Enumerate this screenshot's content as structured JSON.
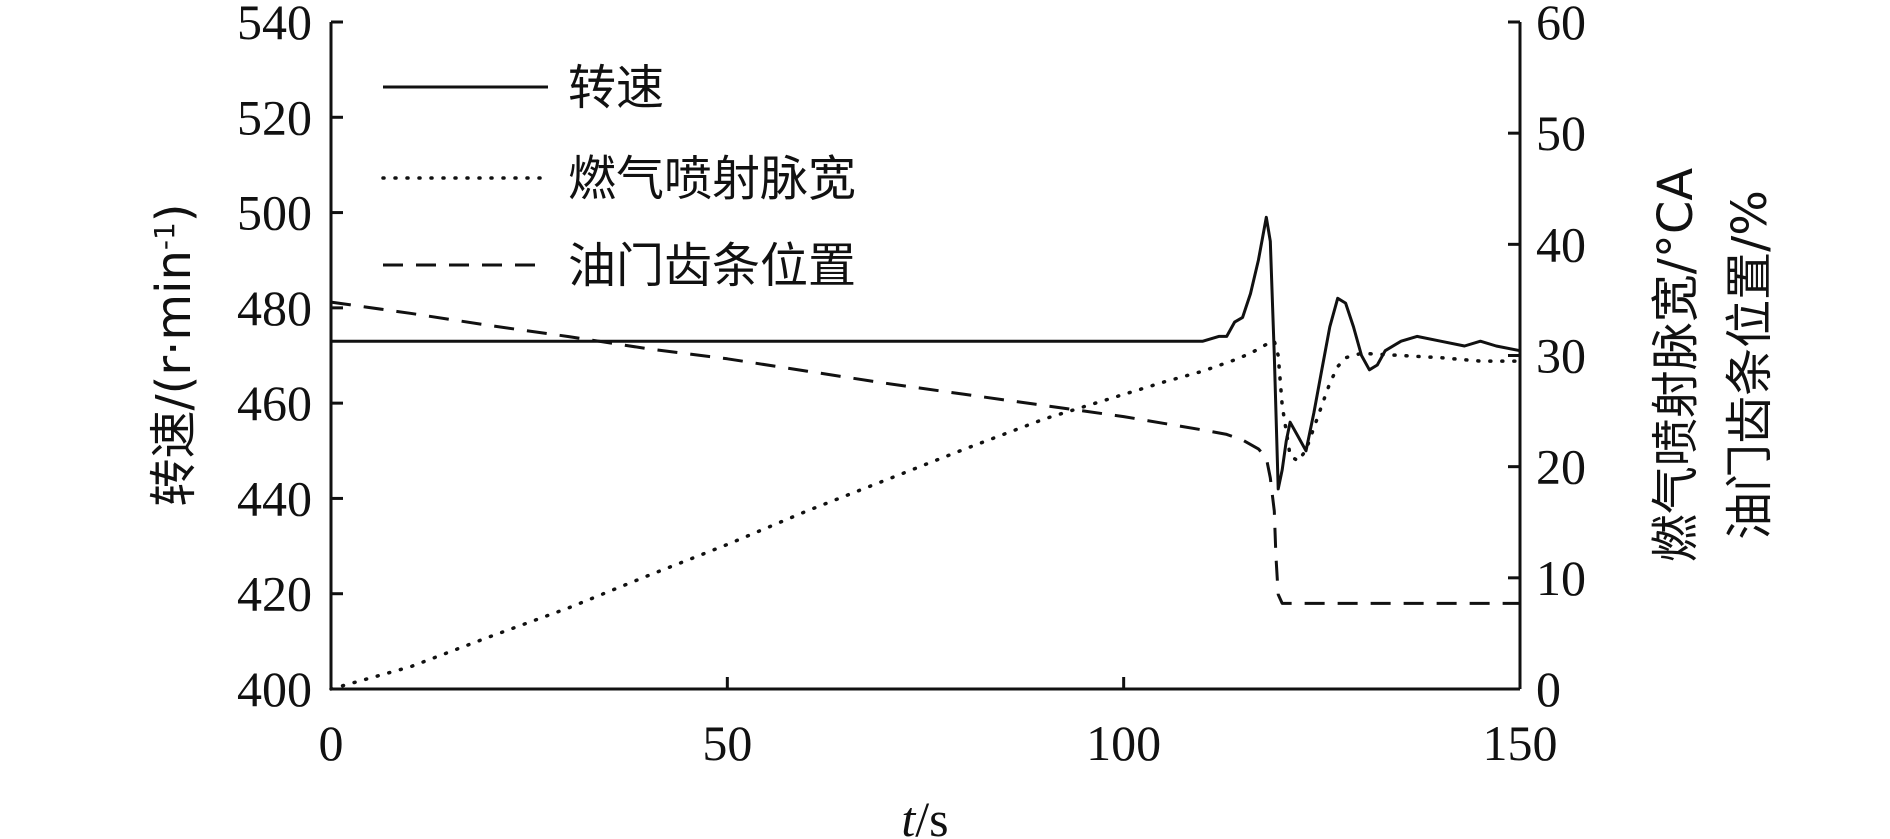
{
  "chart_data": {
    "type": "line",
    "x_label_italic": "t",
    "x_label_unit": "/s",
    "y_left_label": "转速/(r·min",
    "y_left_label_sup": "-1",
    "y_left_label_close": ")",
    "y_right_label_line1": "燃气喷射脉宽/°CA",
    "y_right_label_line2": "油门齿条位置/%",
    "xlim": [
      0,
      150
    ],
    "ylim_left": [
      400,
      540
    ],
    "ylim_right": [
      0,
      60
    ],
    "x_ticks": [
      "0",
      "50",
      "100",
      "150"
    ],
    "y_left_ticks": [
      "400",
      "420",
      "440",
      "460",
      "480",
      "500",
      "520",
      "540"
    ],
    "y_right_ticks": [
      "0",
      "10",
      "20",
      "30",
      "40",
      "50",
      "60"
    ],
    "legend_placement": "top-left",
    "grid": false,
    "series": [
      {
        "name": "转速",
        "axis": "left",
        "style": "solid",
        "color": "#111111",
        "x": [
          0,
          10,
          20,
          30,
          40,
          50,
          60,
          70,
          80,
          90,
          100,
          105,
          110,
          112,
          113,
          114,
          115,
          116,
          117,
          118,
          118.5,
          119,
          119.5,
          120,
          120.5,
          121,
          122,
          123,
          124,
          125,
          126,
          127,
          128,
          129,
          130,
          131,
          132,
          133,
          135,
          137,
          140,
          143,
          145,
          147,
          150
        ],
        "y": [
          473,
          473,
          473,
          473,
          473,
          473,
          473,
          473,
          473,
          473,
          473,
          473,
          473,
          474,
          474,
          477,
          478,
          483,
          490,
          499,
          494,
          470,
          442,
          446,
          452,
          456,
          453,
          450,
          458,
          467,
          476,
          482,
          481,
          476,
          470,
          467,
          468,
          471,
          473,
          474,
          473,
          472,
          473,
          472,
          471
        ]
      },
      {
        "name": "燃气喷射脉宽",
        "axis": "right",
        "style": "dotted",
        "color": "#111111",
        "x": [
          0,
          5,
          10,
          20,
          30,
          40,
          50,
          60,
          70,
          80,
          90,
          100,
          105,
          110,
          112,
          114,
          116,
          118,
          119,
          119.5,
          120,
          121,
          122,
          123,
          124,
          125,
          126,
          127,
          128,
          130,
          135,
          140,
          145,
          150
        ],
        "y": [
          0,
          1,
          2,
          4.7,
          7.3,
          10.2,
          13,
          16,
          18.8,
          21.6,
          24.3,
          26.5,
          27.6,
          28.6,
          29.1,
          29.6,
          30.2,
          31,
          31.3,
          30,
          25.5,
          21,
          20.5,
          21.5,
          23.5,
          25.5,
          27.5,
          29,
          29.8,
          30.2,
          30,
          29.8,
          29.5,
          29.5
        ]
      },
      {
        "name": "油门齿条位置",
        "axis": "right",
        "style": "dashed",
        "color": "#111111",
        "x": [
          0,
          10,
          20,
          30,
          40,
          50,
          60,
          70,
          80,
          90,
          100,
          105,
          110,
          113,
          115,
          117,
          118,
          118.5,
          119,
          119.2,
          119.5,
          120,
          125,
          130,
          140,
          150
        ],
        "y": [
          34.8,
          33.8,
          32.7,
          31.7,
          30.6,
          29.7,
          28.6,
          27.5,
          26.5,
          25.5,
          24.5,
          23.9,
          23.3,
          22.9,
          22.4,
          21.6,
          20.8,
          19,
          16,
          12,
          8.5,
          7.7,
          7.7,
          7.7,
          7.7,
          7.7
        ]
      }
    ]
  }
}
